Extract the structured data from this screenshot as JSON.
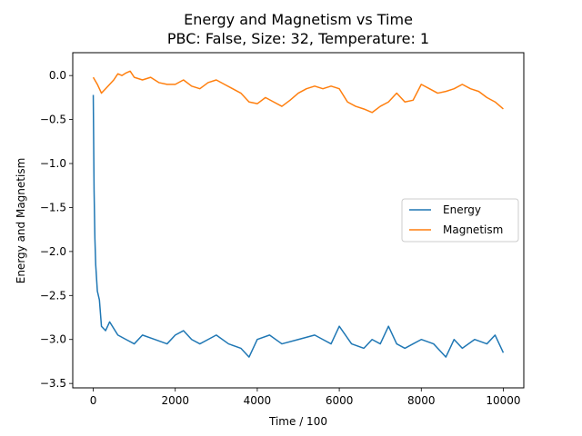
{
  "chart_data": {
    "type": "line",
    "title": "Energy and Magnetism vs Time",
    "subtitle": "PBC: False, Size: 32, Temperature: 1",
    "xlabel": "Time / 100",
    "ylabel": "Energy and Magnetism",
    "xlim": [
      -500,
      10500
    ],
    "ylim": [
      -3.55,
      0.26
    ],
    "xticks": [
      0,
      2000,
      4000,
      6000,
      8000,
      10000
    ],
    "xtick_labels": [
      "0",
      "2000",
      "4000",
      "6000",
      "8000",
      "10000"
    ],
    "yticks": [
      0.0,
      -0.5,
      -1.0,
      -1.5,
      -2.0,
      -2.5,
      -3.0,
      -3.5
    ],
    "ytick_labels": [
      "0.0",
      "−0.5",
      "−1.0",
      "−1.5",
      "−2.0",
      "−2.5",
      "−3.0",
      "−3.5"
    ],
    "grid": false,
    "legend_position": "center-right",
    "series": [
      {
        "name": "Energy",
        "color": "#1f77b4",
        "x": [
          0,
          20,
          40,
          60,
          80,
          100,
          150,
          200,
          300,
          400,
          600,
          800,
          1000,
          1200,
          1500,
          1800,
          2000,
          2200,
          2400,
          2600,
          2800,
          3000,
          3300,
          3600,
          3800,
          4000,
          4300,
          4600,
          5000,
          5400,
          5600,
          5800,
          6000,
          6300,
          6600,
          6800,
          7000,
          7200,
          7400,
          7600,
          7800,
          8000,
          8300,
          8600,
          8800,
          9000,
          9300,
          9600,
          9800,
          10000
        ],
        "y": [
          -0.22,
          -1.3,
          -1.85,
          -2.15,
          -2.3,
          -2.45,
          -2.55,
          -2.85,
          -2.9,
          -2.8,
          -2.95,
          -3.0,
          -3.05,
          -2.95,
          -3.0,
          -3.05,
          -2.95,
          -2.9,
          -3.0,
          -3.05,
          -3.0,
          -2.95,
          -3.05,
          -3.1,
          -3.2,
          -3.0,
          -2.95,
          -3.05,
          -3.0,
          -2.95,
          -3.0,
          -3.05,
          -2.85,
          -3.05,
          -3.1,
          -3.0,
          -3.05,
          -2.85,
          -3.05,
          -3.1,
          -3.05,
          -3.0,
          -3.05,
          -3.2,
          -3.0,
          -3.1,
          -3.0,
          -3.05,
          -2.95,
          -3.15
        ]
      },
      {
        "name": "Magnetism",
        "color": "#ff7f0e",
        "x": [
          0,
          100,
          200,
          300,
          400,
          500,
          600,
          700,
          800,
          900,
          1000,
          1200,
          1400,
          1600,
          1800,
          2000,
          2200,
          2400,
          2600,
          2800,
          3000,
          3200,
          3400,
          3600,
          3800,
          4000,
          4200,
          4400,
          4600,
          4800,
          5000,
          5200,
          5400,
          5600,
          5800,
          6000,
          6200,
          6400,
          6600,
          6800,
          7000,
          7200,
          7400,
          7600,
          7800,
          8000,
          8200,
          8400,
          8600,
          8800,
          9000,
          9200,
          9400,
          9600,
          9800,
          10000
        ],
        "y": [
          -0.02,
          -0.1,
          -0.2,
          -0.15,
          -0.1,
          -0.05,
          0.02,
          0.0,
          0.03,
          0.05,
          -0.02,
          -0.05,
          -0.02,
          -0.08,
          -0.1,
          -0.1,
          -0.05,
          -0.12,
          -0.15,
          -0.08,
          -0.05,
          -0.1,
          -0.15,
          -0.2,
          -0.3,
          -0.32,
          -0.25,
          -0.3,
          -0.35,
          -0.28,
          -0.2,
          -0.15,
          -0.12,
          -0.15,
          -0.12,
          -0.15,
          -0.3,
          -0.35,
          -0.38,
          -0.42,
          -0.35,
          -0.3,
          -0.2,
          -0.3,
          -0.28,
          -0.1,
          -0.15,
          -0.2,
          -0.18,
          -0.15,
          -0.1,
          -0.15,
          -0.18,
          -0.25,
          -0.3,
          -0.38
        ]
      }
    ]
  }
}
